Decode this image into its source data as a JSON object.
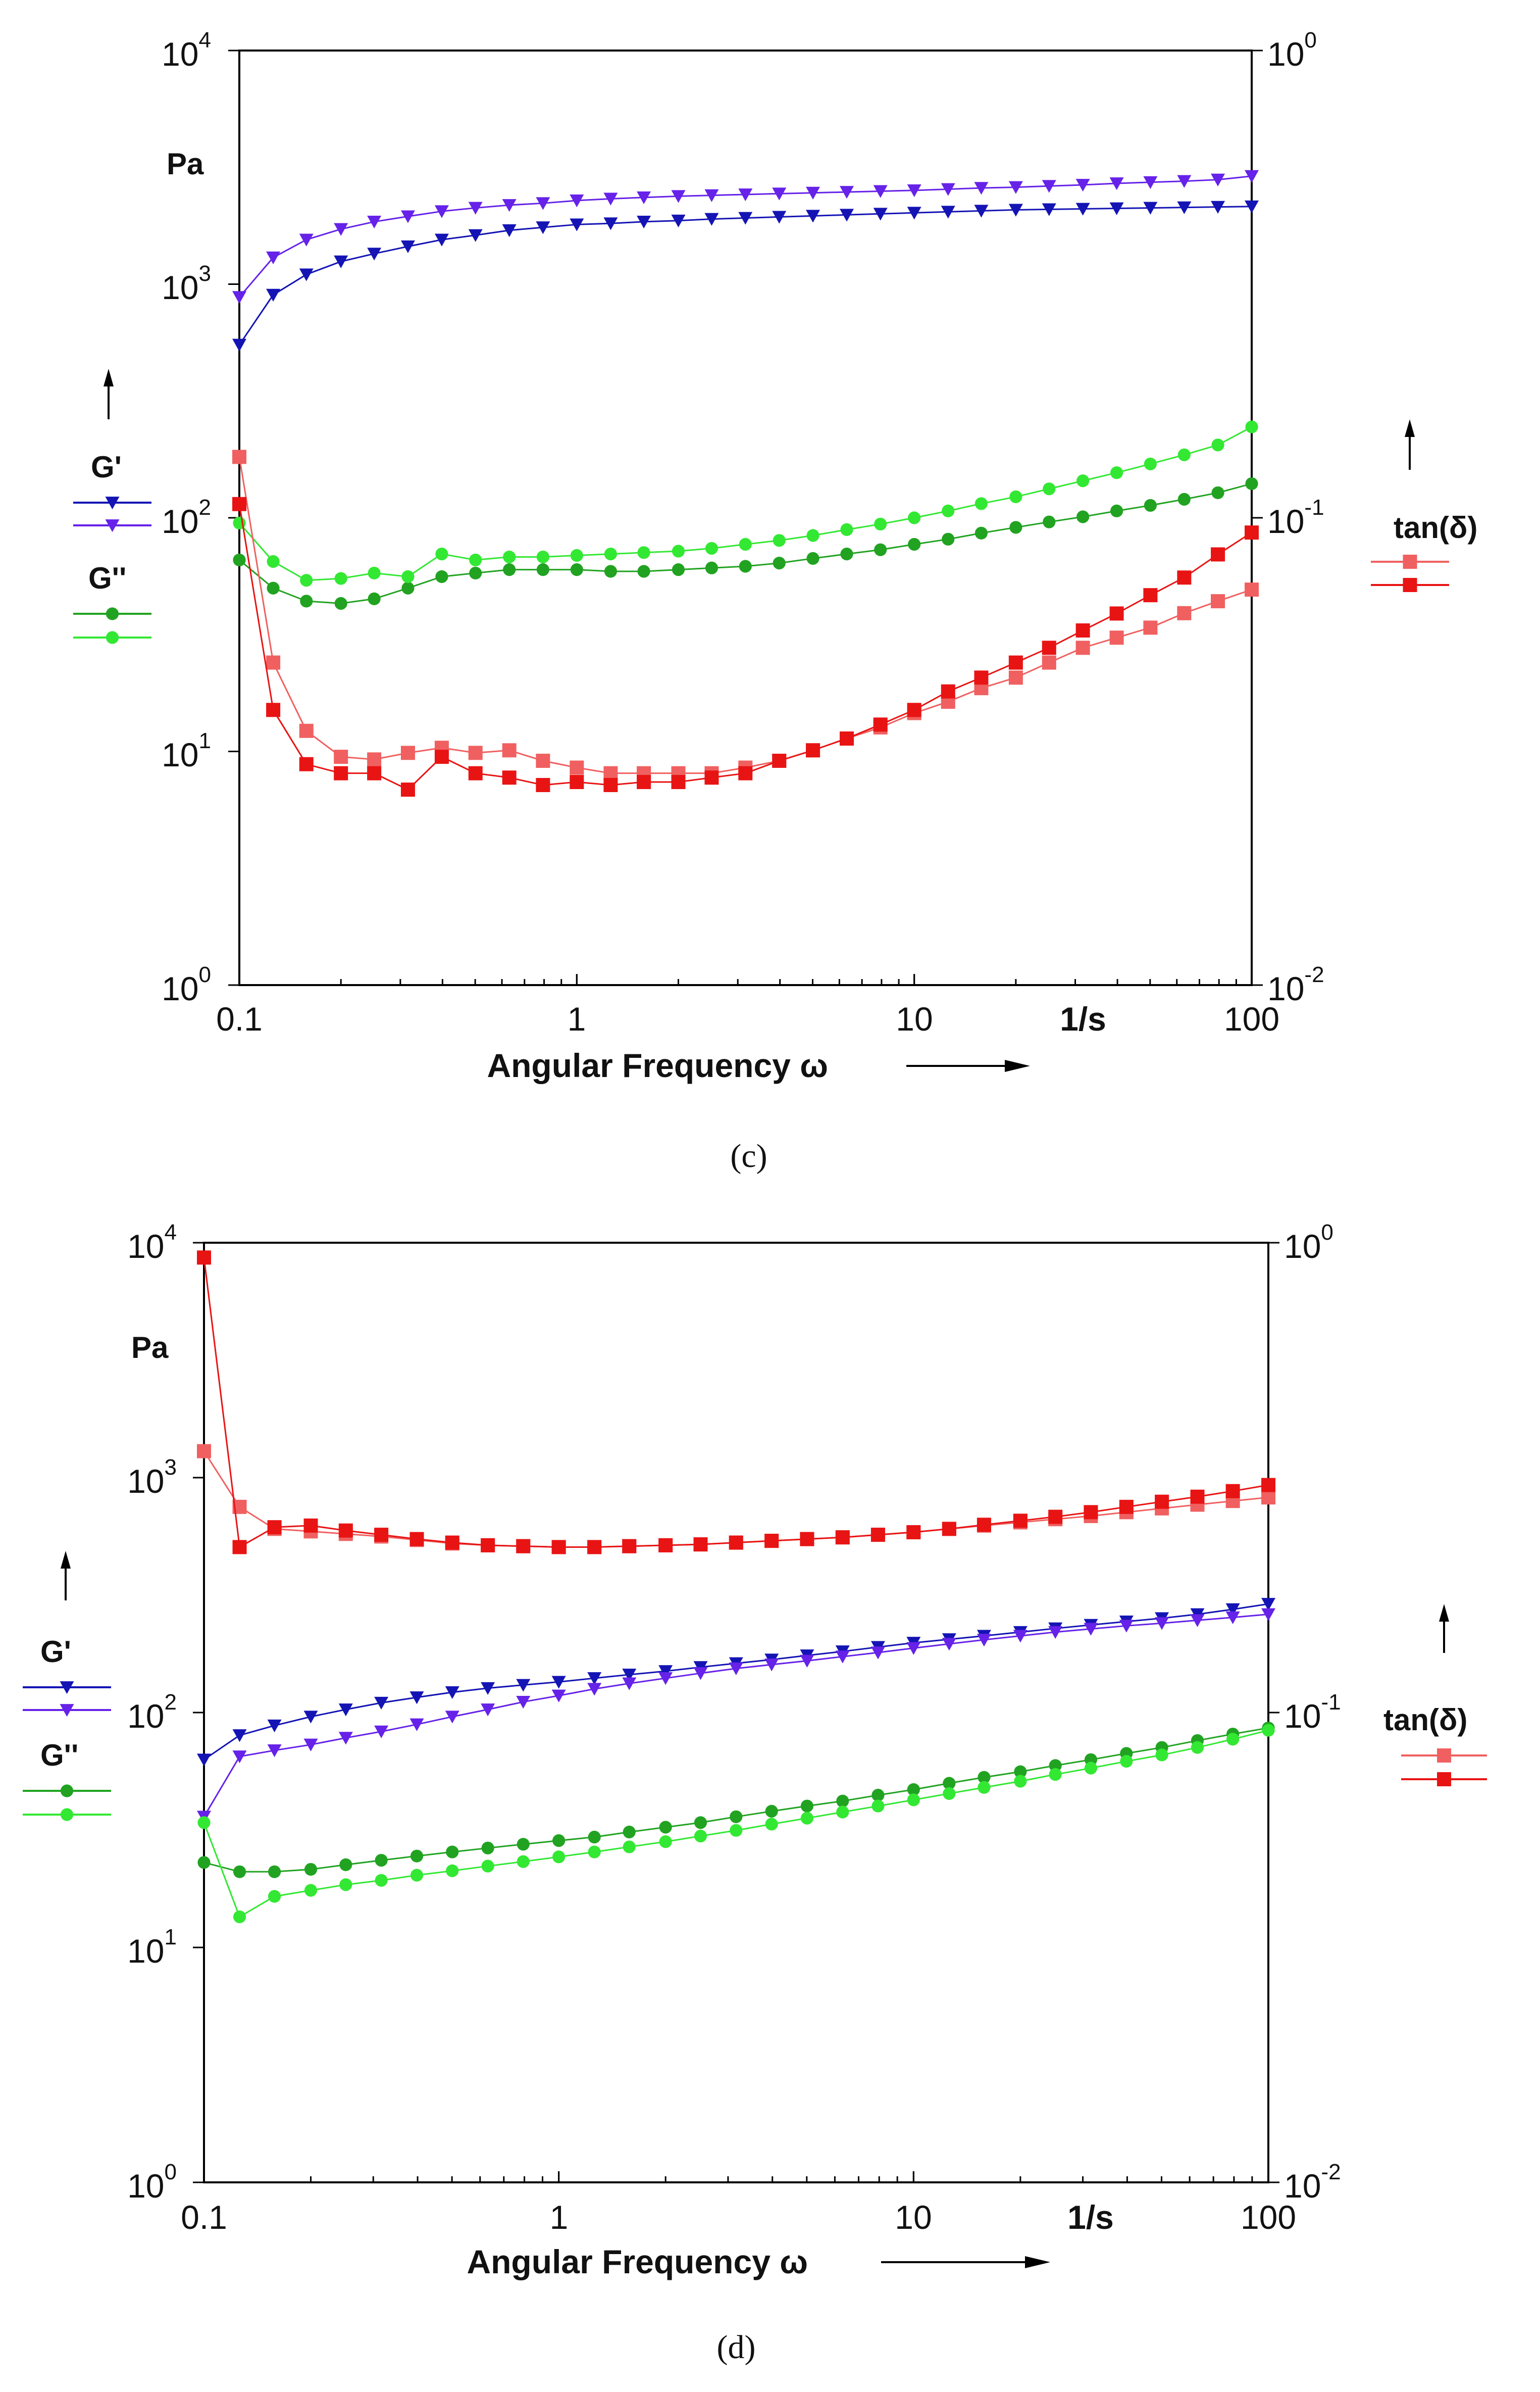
{
  "figure": {
    "caption_c": "(c)",
    "caption_d": "(d)"
  },
  "chart_data": [
    {
      "type": "line",
      "panel": "c",
      "caption": "(c)",
      "x_scale": "log",
      "xlim": [
        0.1,
        100
      ],
      "y_scale": "log",
      "ylim": [
        1,
        10000
      ],
      "y2_scale": "log",
      "y2lim": [
        0.01,
        1
      ],
      "xlabel": "Angular Frequency ω",
      "xunit": "1/s",
      "yunit": "Pa",
      "y2label": "tan(δ)",
      "x_ticks": [
        "0.1",
        "1",
        "10",
        "100"
      ],
      "y_ticks": [
        {
          "base": "10",
          "exp": "0"
        },
        {
          "base": "10",
          "exp": "1"
        },
        {
          "base": "10",
          "exp": "2"
        },
        {
          "base": "10",
          "exp": "3"
        },
        {
          "base": "10",
          "exp": "4"
        }
      ],
      "y2_ticks": [
        {
          "base": "10",
          "exp": "-2"
        },
        {
          "base": "10",
          "exp": "-1"
        },
        {
          "base": "10",
          "exp": "0"
        }
      ],
      "legend": {
        "left_group_1": "G'",
        "left_group_2": "G''",
        "right_group": "tan(δ)"
      },
      "x": [
        0.1,
        0.126,
        0.158,
        0.2,
        0.251,
        0.316,
        0.398,
        0.501,
        0.631,
        0.794,
        1,
        1.26,
        1.58,
        2,
        2.51,
        3.16,
        3.98,
        5.01,
        6.31,
        7.94,
        10,
        12.6,
        15.8,
        20,
        25.1,
        31.6,
        39.8,
        50.1,
        63.1,
        79.4,
        100
      ],
      "series": [
        {
          "name": "G' (1)",
          "axis": "left",
          "marker": "triangle-down",
          "color": "#1414b4",
          "values": [
            550,
            900,
            1100,
            1250,
            1350,
            1450,
            1550,
            1620,
            1700,
            1750,
            1800,
            1820,
            1850,
            1870,
            1900,
            1920,
            1940,
            1960,
            1980,
            2000,
            2020,
            2040,
            2060,
            2080,
            2090,
            2100,
            2110,
            2120,
            2130,
            2140,
            2150
          ]
        },
        {
          "name": "G' (2)",
          "axis": "left",
          "marker": "triangle-down",
          "color": "#6622e8",
          "values": [
            880,
            1300,
            1550,
            1720,
            1850,
            1950,
            2050,
            2120,
            2180,
            2220,
            2280,
            2320,
            2350,
            2380,
            2400,
            2420,
            2440,
            2460,
            2480,
            2500,
            2520,
            2550,
            2580,
            2600,
            2630,
            2660,
            2700,
            2730,
            2760,
            2800,
            2900
          ]
        },
        {
          "name": "G'' (1)",
          "axis": "left",
          "marker": "circle",
          "color": "#21a321",
          "values": [
            66,
            50,
            44,
            43,
            45,
            50,
            56,
            58,
            60,
            60,
            60,
            59,
            59,
            60,
            61,
            62,
            64,
            67,
            70,
            73,
            77,
            81,
            86,
            91,
            96,
            101,
            107,
            113,
            120,
            128,
            140
          ]
        },
        {
          "name": "G'' (2)",
          "axis": "left",
          "marker": "circle",
          "color": "#33e833",
          "values": [
            95,
            65,
            54,
            55,
            58,
            56,
            70,
            66,
            68,
            68,
            69,
            70,
            71,
            72,
            74,
            77,
            80,
            84,
            89,
            94,
            100,
            107,
            115,
            123,
            133,
            144,
            156,
            170,
            186,
            205,
            245
          ]
        },
        {
          "name": "tan(δ) (1)",
          "axis": "right",
          "marker": "square",
          "color": "#f06060",
          "values": [
            0.135,
            0.049,
            0.035,
            0.0308,
            0.0304,
            0.0314,
            0.0322,
            0.0314,
            0.0318,
            0.0302,
            0.0292,
            0.0284,
            0.0284,
            0.0284,
            0.0284,
            0.0292,
            0.0302,
            0.0318,
            0.0337,
            0.0356,
            0.0382,
            0.0404,
            0.0432,
            0.0455,
            0.049,
            0.0527,
            0.0554,
            0.0582,
            0.0625,
            0.0663,
            0.0702
          ]
        },
        {
          "name": "tan(δ) (2)",
          "axis": "right",
          "marker": "square",
          "color": "#e81414",
          "values": [
            0.107,
            0.0388,
            0.0297,
            0.0284,
            0.0284,
            0.0262,
            0.0308,
            0.0284,
            0.0278,
            0.0268,
            0.0272,
            0.0268,
            0.0272,
            0.0272,
            0.0278,
            0.0284,
            0.0302,
            0.0318,
            0.0337,
            0.0361,
            0.0388,
            0.0425,
            0.0455,
            0.049,
            0.0527,
            0.0574,
            0.0624,
            0.0683,
            0.0745,
            0.0835,
            0.093
          ]
        }
      ]
    },
    {
      "type": "line",
      "panel": "d",
      "caption": "(d)",
      "x_scale": "log",
      "xlim": [
        0.1,
        100
      ],
      "y_scale": "log",
      "ylim": [
        1,
        10000
      ],
      "y2_scale": "log",
      "y2lim": [
        0.01,
        1
      ],
      "xlabel": "Angular Frequency ω",
      "xunit": "1/s",
      "yunit": "Pa",
      "y2label": "tan(δ)",
      "x_ticks": [
        "0.1",
        "1",
        "10",
        "100"
      ],
      "y_ticks": [
        {
          "base": "10",
          "exp": "0"
        },
        {
          "base": "10",
          "exp": "1"
        },
        {
          "base": "10",
          "exp": "2"
        },
        {
          "base": "10",
          "exp": "3"
        },
        {
          "base": "10",
          "exp": "4"
        }
      ],
      "y2_ticks": [
        {
          "base": "10",
          "exp": "-2"
        },
        {
          "base": "10",
          "exp": "-1"
        },
        {
          "base": "10",
          "exp": "0"
        }
      ],
      "legend": {
        "left_group_1": "G'",
        "left_group_2": "G''",
        "right_group": "tan(δ)"
      },
      "x": [
        0.1,
        0.126,
        0.158,
        0.2,
        0.251,
        0.316,
        0.398,
        0.501,
        0.631,
        0.794,
        1,
        1.26,
        1.58,
        2,
        2.51,
        3.16,
        3.98,
        5.01,
        6.31,
        7.94,
        10,
        12.6,
        15.8,
        20,
        25.1,
        31.6,
        39.8,
        50.1,
        63.1,
        79.4,
        100
      ],
      "series": [
        {
          "name": "G' (1)",
          "axis": "left",
          "marker": "triangle-down",
          "color": "#1414b4",
          "values": [
            63,
            80,
            88,
            96,
            103,
            110,
            116,
            122,
            127,
            131,
            135,
            140,
            145,
            150,
            156,
            162,
            168,
            175,
            182,
            190,
            198,
            205,
            212,
            220,
            228,
            236,
            244,
            252,
            262,
            275,
            290
          ]
        },
        {
          "name": "G' (2)",
          "axis": "left",
          "marker": "triangle-down",
          "color": "#6622e8",
          "values": [
            36,
            65,
            69,
            73,
            78,
            83,
            89,
            96,
            103,
            111,
            118,
            126,
            133,
            140,
            147,
            154,
            160,
            166,
            173,
            180,
            188,
            196,
            204,
            212,
            220,
            227,
            234,
            240,
            247,
            254,
            262
          ]
        },
        {
          "name": "G'' (1)",
          "axis": "left",
          "marker": "circle",
          "color": "#21a321",
          "values": [
            23,
            21,
            21,
            21.5,
            22.5,
            23.5,
            24.5,
            25.5,
            26.5,
            27.5,
            28.5,
            29.5,
            31,
            32.5,
            34,
            36,
            38,
            40,
            42,
            44.5,
            47,
            50,
            53,
            56,
            59.5,
            63,
            67,
            71,
            76,
            81,
            86
          ]
        },
        {
          "name": "G'' (2)",
          "axis": "left",
          "marker": "circle",
          "color": "#33e833",
          "values": [
            34,
            13.5,
            16.5,
            17.5,
            18.5,
            19.3,
            20.3,
            21.2,
            22.2,
            23.2,
            24.3,
            25.5,
            26.8,
            28.2,
            29.8,
            31.5,
            33.5,
            35.5,
            37.7,
            40,
            42.5,
            45.2,
            48,
            51,
            54.5,
            58,
            62,
            66,
            71,
            77,
            84
          ]
        },
        {
          "name": "tan(δ) (1)",
          "axis": "right",
          "marker": "square",
          "color": "#f06060",
          "values": [
            0.36,
            0.274,
            0.246,
            0.243,
            0.24,
            0.237,
            0.233,
            0.229,
            0.227,
            0.226,
            0.225,
            0.225,
            0.226,
            0.227,
            0.228,
            0.23,
            0.232,
            0.234,
            0.236,
            0.239,
            0.242,
            0.246,
            0.25,
            0.254,
            0.258,
            0.262,
            0.267,
            0.272,
            0.277,
            0.282,
            0.287
          ]
        },
        {
          "name": "tan(δ) (2)",
          "axis": "right",
          "marker": "square",
          "color": "#e81414",
          "values": [
            0.93,
            0.225,
            0.248,
            0.25,
            0.244,
            0.239,
            0.234,
            0.23,
            0.227,
            0.226,
            0.225,
            0.225,
            0.226,
            0.227,
            0.228,
            0.23,
            0.232,
            0.234,
            0.236,
            0.239,
            0.242,
            0.246,
            0.251,
            0.256,
            0.261,
            0.267,
            0.274,
            0.281,
            0.288,
            0.296,
            0.305
          ]
        }
      ]
    }
  ]
}
